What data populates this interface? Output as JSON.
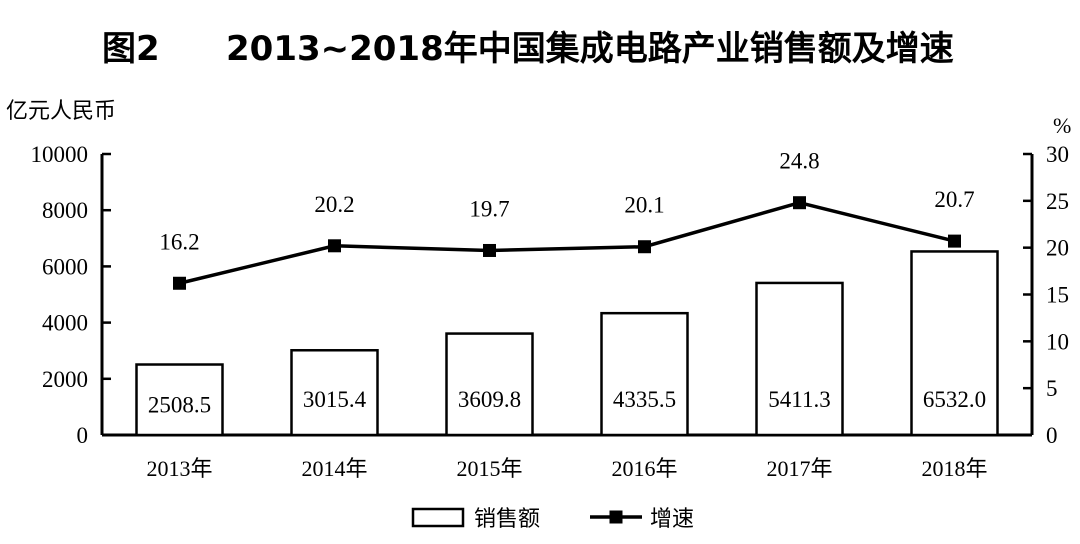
{
  "chart_data": {
    "type": "bar+line",
    "title_prefix": "图2",
    "title": "2013~2018年中国集成电路产业销售额及增速",
    "ylabel_left": "亿元人民币",
    "ylabel_right": "%",
    "categories": [
      "2013年",
      "2014年",
      "2015年",
      "2016年",
      "2017年",
      "2018年"
    ],
    "series": [
      {
        "name": "销售额",
        "type": "bar",
        "axis": "left",
        "values": [
          2508.5,
          3015.4,
          3609.8,
          4335.5,
          5411.3,
          6532.0
        ],
        "labels": [
          "2508.5",
          "3015.4",
          "3609.8",
          "4335.5",
          "5411.3",
          "6532.0"
        ]
      },
      {
        "name": "增速",
        "type": "line",
        "axis": "right",
        "values": [
          16.2,
          20.2,
          19.7,
          20.1,
          24.8,
          20.7
        ],
        "labels": [
          "16.2",
          "20.2",
          "19.7",
          "20.1",
          "24.8",
          "20.7"
        ]
      }
    ],
    "ylim_left": [
      0,
      10000
    ],
    "yticks_left": [
      "0",
      "2000",
      "4000",
      "6000",
      "8000",
      "10000"
    ],
    "ylim_right": [
      0,
      30
    ],
    "yticks_right": [
      "0",
      "5",
      "10",
      "15",
      "20",
      "25",
      "30"
    ],
    "grid": false,
    "legend_position": "bottom"
  }
}
